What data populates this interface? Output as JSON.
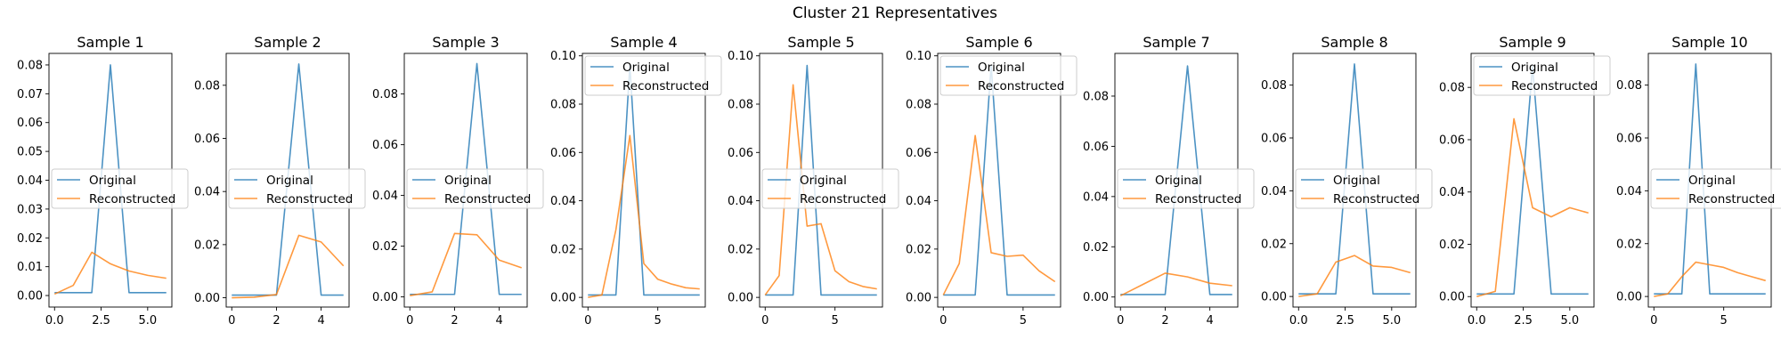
{
  "title": "Cluster 21 Representatives",
  "colors": {
    "original": "#1f77b4",
    "reconstructed": "#ff7f0e"
  },
  "chart_data": [
    {
      "type": "line",
      "title": "Sample 1",
      "xlim": [
        -0.3,
        6.3
      ],
      "ylim": [
        -0.004,
        0.084
      ],
      "xticks": [
        0.0,
        2.5,
        5.0
      ],
      "xtick_labels": [
        "0.0",
        "2.5",
        "5.0"
      ],
      "yticks": [
        0,
        0.01,
        0.02,
        0.03,
        0.04,
        0.05,
        0.06,
        0.07,
        0.08
      ],
      "ytick_labels": [
        "0.00",
        "0.01",
        "0.02",
        "0.03",
        "0.04",
        "0.05",
        "0.06",
        "0.07",
        "0.08"
      ],
      "legend": "center-left",
      "series": [
        {
          "name": "Original",
          "x": [
            0,
            1,
            2,
            3,
            4,
            5,
            6
          ],
          "y": [
            0.001,
            0.001,
            0.001,
            0.08,
            0.001,
            0.001,
            0.001
          ]
        },
        {
          "name": "Reconstructed",
          "x": [
            0,
            1,
            2,
            3,
            4,
            5,
            6
          ],
          "y": [
            0.0005,
            0.0035,
            0.015,
            0.011,
            0.0085,
            0.007,
            0.006
          ]
        }
      ]
    },
    {
      "type": "line",
      "title": "Sample 2",
      "xlim": [
        -0.25,
        5.25
      ],
      "ylim": [
        -0.0035,
        0.092
      ],
      "xticks": [
        0,
        2,
        4
      ],
      "xtick_labels": [
        "0",
        "2",
        "4"
      ],
      "yticks": [
        0,
        0.02,
        0.04,
        0.06,
        0.08
      ],
      "ytick_labels": [
        "0.00",
        "0.02",
        "0.04",
        "0.06",
        "0.08"
      ],
      "legend": "center-left",
      "series": [
        {
          "name": "Original",
          "x": [
            0,
            1,
            2,
            3,
            4,
            5
          ],
          "y": [
            0.001,
            0.001,
            0.001,
            0.088,
            0.001,
            0.001
          ]
        },
        {
          "name": "Reconstructed",
          "x": [
            0,
            1,
            2,
            3,
            4,
            5
          ],
          "y": [
            0.0,
            0.0002,
            0.0012,
            0.0235,
            0.021,
            0.012
          ]
        }
      ]
    },
    {
      "type": "line",
      "title": "Sample 3",
      "xlim": [
        -0.25,
        5.25
      ],
      "ylim": [
        -0.004,
        0.096
      ],
      "xticks": [
        0,
        2,
        4
      ],
      "xtick_labels": [
        "0",
        "2",
        "4"
      ],
      "yticks": [
        0,
        0.02,
        0.04,
        0.06,
        0.08
      ],
      "ytick_labels": [
        "0.00",
        "0.02",
        "0.04",
        "0.06",
        "0.08"
      ],
      "legend": "center-left",
      "series": [
        {
          "name": "Original",
          "x": [
            0,
            1,
            2,
            3,
            4,
            5
          ],
          "y": [
            0.001,
            0.001,
            0.001,
            0.092,
            0.001,
            0.001
          ]
        },
        {
          "name": "Reconstructed",
          "x": [
            0,
            1,
            2,
            3,
            4,
            5
          ],
          "y": [
            0.0005,
            0.002,
            0.025,
            0.0245,
            0.0145,
            0.0115
          ]
        }
      ]
    },
    {
      "type": "line",
      "title": "Sample 4",
      "xlim": [
        -0.4,
        8.4
      ],
      "ylim": [
        -0.004,
        0.101
      ],
      "xticks": [
        0,
        5
      ],
      "xtick_labels": [
        "0",
        "5"
      ],
      "yticks": [
        0,
        0.02,
        0.04,
        0.06,
        0.08,
        0.1
      ],
      "ytick_labels": [
        "0.00",
        "0.02",
        "0.04",
        "0.06",
        "0.08",
        "0.10"
      ],
      "legend": "top-left",
      "series": [
        {
          "name": "Original",
          "x": [
            0,
            1,
            2,
            3,
            4,
            5,
            6,
            7,
            8
          ],
          "y": [
            0.001,
            0.001,
            0.001,
            0.096,
            0.001,
            0.001,
            0.001,
            0.001,
            0.001
          ]
        },
        {
          "name": "Reconstructed",
          "x": [
            0,
            1,
            2,
            3,
            4,
            5,
            6,
            7,
            8
          ],
          "y": [
            0.0,
            0.001,
            0.028,
            0.067,
            0.014,
            0.0075,
            0.0055,
            0.004,
            0.0035
          ]
        }
      ]
    },
    {
      "type": "line",
      "title": "Sample 5",
      "xlim": [
        -0.4,
        8.4
      ],
      "ylim": [
        -0.004,
        0.101
      ],
      "xticks": [
        0,
        5
      ],
      "xtick_labels": [
        "0",
        "5"
      ],
      "yticks": [
        0,
        0.02,
        0.04,
        0.06,
        0.08,
        0.1
      ],
      "ytick_labels": [
        "0.00",
        "0.02",
        "0.04",
        "0.06",
        "0.08",
        "0.10"
      ],
      "legend": "center-left",
      "series": [
        {
          "name": "Original",
          "x": [
            0,
            1,
            2,
            3,
            4,
            5,
            6,
            7,
            8
          ],
          "y": [
            0.001,
            0.001,
            0.001,
            0.096,
            0.001,
            0.001,
            0.001,
            0.001,
            0.001
          ]
        },
        {
          "name": "Reconstructed",
          "x": [
            0,
            1,
            2,
            3,
            4,
            5,
            6,
            7,
            8
          ],
          "y": [
            0.001,
            0.009,
            0.088,
            0.0295,
            0.0305,
            0.011,
            0.0065,
            0.0045,
            0.0035
          ]
        }
      ]
    },
    {
      "type": "line",
      "title": "Sample 6",
      "xlim": [
        -0.35,
        7.35
      ],
      "ylim": [
        -0.004,
        0.101
      ],
      "xticks": [
        0,
        5
      ],
      "xtick_labels": [
        "0",
        "5"
      ],
      "yticks": [
        0,
        0.02,
        0.04,
        0.06,
        0.08,
        0.1
      ],
      "ytick_labels": [
        "0.00",
        "0.02",
        "0.04",
        "0.06",
        "0.08",
        "0.10"
      ],
      "legend": "top-left",
      "series": [
        {
          "name": "Original",
          "x": [
            0,
            1,
            2,
            3,
            4,
            5,
            6,
            7
          ],
          "y": [
            0.001,
            0.001,
            0.001,
            0.096,
            0.001,
            0.001,
            0.001,
            0.001
          ]
        },
        {
          "name": "Reconstructed",
          "x": [
            0,
            1,
            2,
            3,
            4,
            5,
            6,
            7
          ],
          "y": [
            0.001,
            0.014,
            0.067,
            0.0185,
            0.017,
            0.0175,
            0.011,
            0.0065
          ]
        }
      ]
    },
    {
      "type": "line",
      "title": "Sample 7",
      "xlim": [
        -0.25,
        5.25
      ],
      "ylim": [
        -0.004,
        0.097
      ],
      "xticks": [
        0,
        2,
        4
      ],
      "xtick_labels": [
        "0",
        "2",
        "4"
      ],
      "yticks": [
        0,
        0.02,
        0.04,
        0.06,
        0.08
      ],
      "ytick_labels": [
        "0.00",
        "0.02",
        "0.04",
        "0.06",
        "0.08"
      ],
      "legend": "center-left",
      "series": [
        {
          "name": "Original",
          "x": [
            0,
            1,
            2,
            3,
            4,
            5
          ],
          "y": [
            0.001,
            0.001,
            0.001,
            0.092,
            0.001,
            0.001
          ]
        },
        {
          "name": "Reconstructed",
          "x": [
            0,
            1,
            2,
            3,
            4,
            5
          ],
          "y": [
            0.0005,
            0.005,
            0.0095,
            0.008,
            0.0055,
            0.0045
          ]
        }
      ]
    },
    {
      "type": "line",
      "title": "Sample 8",
      "xlim": [
        -0.3,
        6.3
      ],
      "ylim": [
        -0.004,
        0.092
      ],
      "xticks": [
        0.0,
        2.5,
        5.0
      ],
      "xtick_labels": [
        "0.0",
        "2.5",
        "5.0"
      ],
      "yticks": [
        0,
        0.02,
        0.04,
        0.06,
        0.08
      ],
      "ytick_labels": [
        "0.00",
        "0.02",
        "0.04",
        "0.06",
        "0.08"
      ],
      "legend": "center-left",
      "series": [
        {
          "name": "Original",
          "x": [
            0,
            1,
            2,
            3,
            4,
            5,
            6
          ],
          "y": [
            0.001,
            0.001,
            0.001,
            0.088,
            0.001,
            0.001,
            0.001
          ]
        },
        {
          "name": "Reconstructed",
          "x": [
            0,
            1,
            2,
            3,
            4,
            5,
            6
          ],
          "y": [
            0.0,
            0.001,
            0.013,
            0.0155,
            0.0115,
            0.011,
            0.009
          ]
        }
      ]
    },
    {
      "type": "line",
      "title": "Sample 9",
      "xlim": [
        -0.3,
        6.3
      ],
      "ylim": [
        -0.004,
        0.093
      ],
      "xticks": [
        0.0,
        2.5,
        5.0
      ],
      "xtick_labels": [
        "0.0",
        "2.5",
        "5.0"
      ],
      "yticks": [
        0,
        0.02,
        0.04,
        0.06,
        0.08
      ],
      "ytick_labels": [
        "0.00",
        "0.02",
        "0.04",
        "0.06",
        "0.08"
      ],
      "legend": "top-left",
      "series": [
        {
          "name": "Original",
          "x": [
            0,
            1,
            2,
            3,
            4,
            5,
            6
          ],
          "y": [
            0.001,
            0.001,
            0.001,
            0.088,
            0.001,
            0.001,
            0.001
          ]
        },
        {
          "name": "Reconstructed",
          "x": [
            0,
            1,
            2,
            3,
            4,
            5,
            6
          ],
          "y": [
            0.0,
            0.002,
            0.068,
            0.034,
            0.0305,
            0.034,
            0.032
          ]
        }
      ]
    },
    {
      "type": "line",
      "title": "Sample 10",
      "xlim": [
        -0.4,
        8.4
      ],
      "ylim": [
        -0.004,
        0.092
      ],
      "xticks": [
        0,
        5
      ],
      "xtick_labels": [
        "0",
        "5"
      ],
      "yticks": [
        0,
        0.02,
        0.04,
        0.06,
        0.08
      ],
      "ytick_labels": [
        "0.00",
        "0.02",
        "0.04",
        "0.06",
        "0.08"
      ],
      "legend": "center-left",
      "series": [
        {
          "name": "Original",
          "x": [
            0,
            1,
            2,
            3,
            4,
            5,
            6,
            7,
            8
          ],
          "y": [
            0.001,
            0.001,
            0.001,
            0.088,
            0.001,
            0.001,
            0.001,
            0.001,
            0.001
          ]
        },
        {
          "name": "Reconstructed",
          "x": [
            0,
            1,
            2,
            3,
            4,
            5,
            6,
            7,
            8
          ],
          "y": [
            0.0,
            0.001,
            0.0075,
            0.013,
            0.012,
            0.011,
            0.009,
            0.0075,
            0.006
          ]
        }
      ]
    }
  ]
}
